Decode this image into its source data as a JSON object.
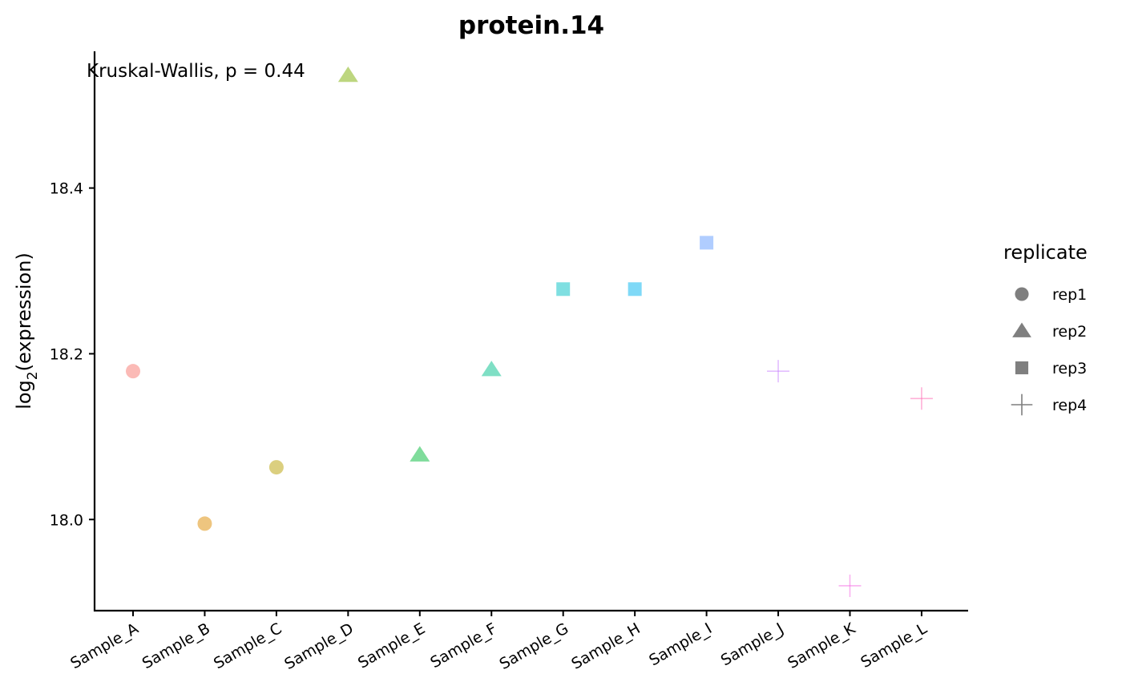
{
  "chart_data": {
    "type": "scatter",
    "title": "protein.14",
    "xlabel": "",
    "ylabel_main": "log",
    "ylabel_sub": "2",
    "ylabel_rest": "(expression)",
    "annotation": "Kruskal-Wallis, p = 0.44",
    "categories": [
      "Sample_A",
      "Sample_B",
      "Sample_C",
      "Sample_D",
      "Sample_E",
      "Sample_F",
      "Sample_G",
      "Sample_H",
      "Sample_I",
      "Sample_J",
      "Sample_K",
      "Sample_L"
    ],
    "yticks": [
      18.0,
      18.2,
      18.4
    ],
    "ytick_labels": [
      "18.0",
      "18.2",
      "18.4"
    ],
    "ylim": [
      17.89,
      18.565
    ],
    "points": [
      {
        "category": "Sample_A",
        "y": 18.179,
        "replicate": "rep1",
        "color": "#F8766D"
      },
      {
        "category": "Sample_B",
        "y": 17.995,
        "replicate": "rep1",
        "color": "#DE8C00"
      },
      {
        "category": "Sample_C",
        "y": 18.063,
        "replicate": "rep1",
        "color": "#B79F00"
      },
      {
        "category": "Sample_D",
        "y": 18.536,
        "replicate": "rep2",
        "color": "#7CAE00"
      },
      {
        "category": "Sample_E",
        "y": 18.078,
        "replicate": "rep2",
        "color": "#00BA38"
      },
      {
        "category": "Sample_F",
        "y": 18.181,
        "replicate": "rep2",
        "color": "#00C08B"
      },
      {
        "category": "Sample_G",
        "y": 18.278,
        "replicate": "rep3",
        "color": "#00BFC4"
      },
      {
        "category": "Sample_H",
        "y": 18.278,
        "replicate": "rep3",
        "color": "#00B4F0"
      },
      {
        "category": "Sample_I",
        "y": 18.334,
        "replicate": "rep3",
        "color": "#619CFF"
      },
      {
        "category": "Sample_J",
        "y": 18.179,
        "replicate": "rep4",
        "color": "#C77CFF"
      },
      {
        "category": "Sample_K",
        "y": 17.92,
        "replicate": "rep4",
        "color": "#F564E3"
      },
      {
        "category": "Sample_L",
        "y": 18.146,
        "replicate": "rep4",
        "color": "#FF64B0"
      }
    ],
    "point_opacity": 0.5,
    "legend": {
      "title": "replicate",
      "placement": "right",
      "items": [
        {
          "label": "rep1",
          "shape": "circle"
        },
        {
          "label": "rep2",
          "shape": "triangle"
        },
        {
          "label": "rep3",
          "shape": "square"
        },
        {
          "label": "rep4",
          "shape": "plus"
        }
      ],
      "key_color": "#7f7f7f"
    },
    "grid": false
  }
}
